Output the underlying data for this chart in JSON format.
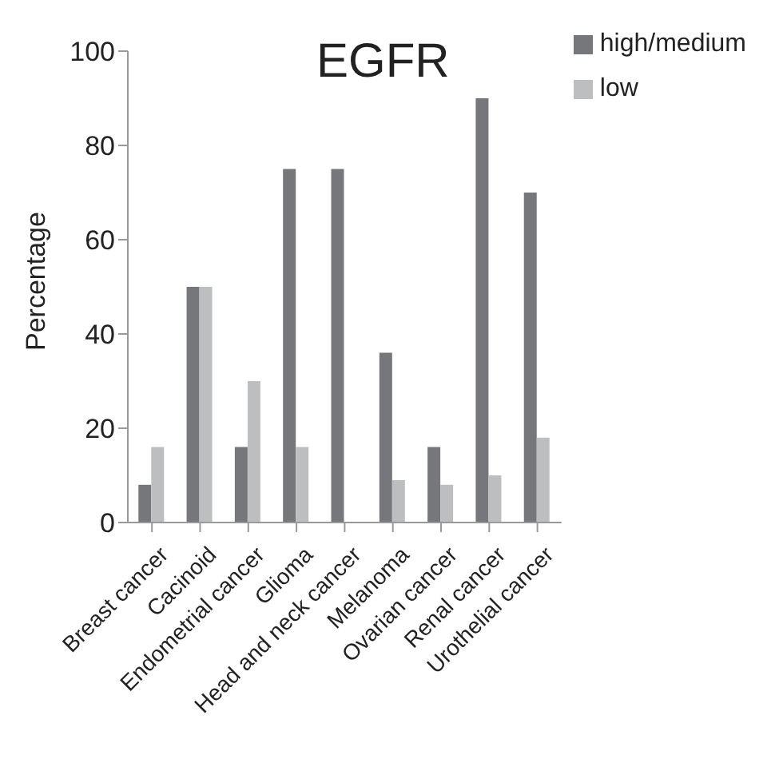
{
  "chart_data": {
    "type": "bar",
    "title": "EGFR",
    "ylabel": "Percentage",
    "categories": [
      "Breast cancer",
      "Cacinoid",
      "Endometrial cancer",
      "Glioma",
      "Head and neck cancer",
      "Melanoma",
      "Ovarian cancer",
      "Renal cancer",
      "Urothelial cancer"
    ],
    "series": [
      {
        "name": "high/medium",
        "color": "#76777b",
        "values": [
          8,
          50,
          16,
          75,
          75,
          36,
          16,
          90,
          70
        ]
      },
      {
        "name": "low",
        "color": "#bdbec0",
        "values": [
          16,
          50,
          30,
          16,
          0,
          9,
          8,
          10,
          18
        ]
      }
    ],
    "ylim": [
      0,
      100
    ],
    "yticks": [
      0,
      20,
      40,
      60,
      80,
      100
    ],
    "grid": false,
    "legend": "top right"
  }
}
